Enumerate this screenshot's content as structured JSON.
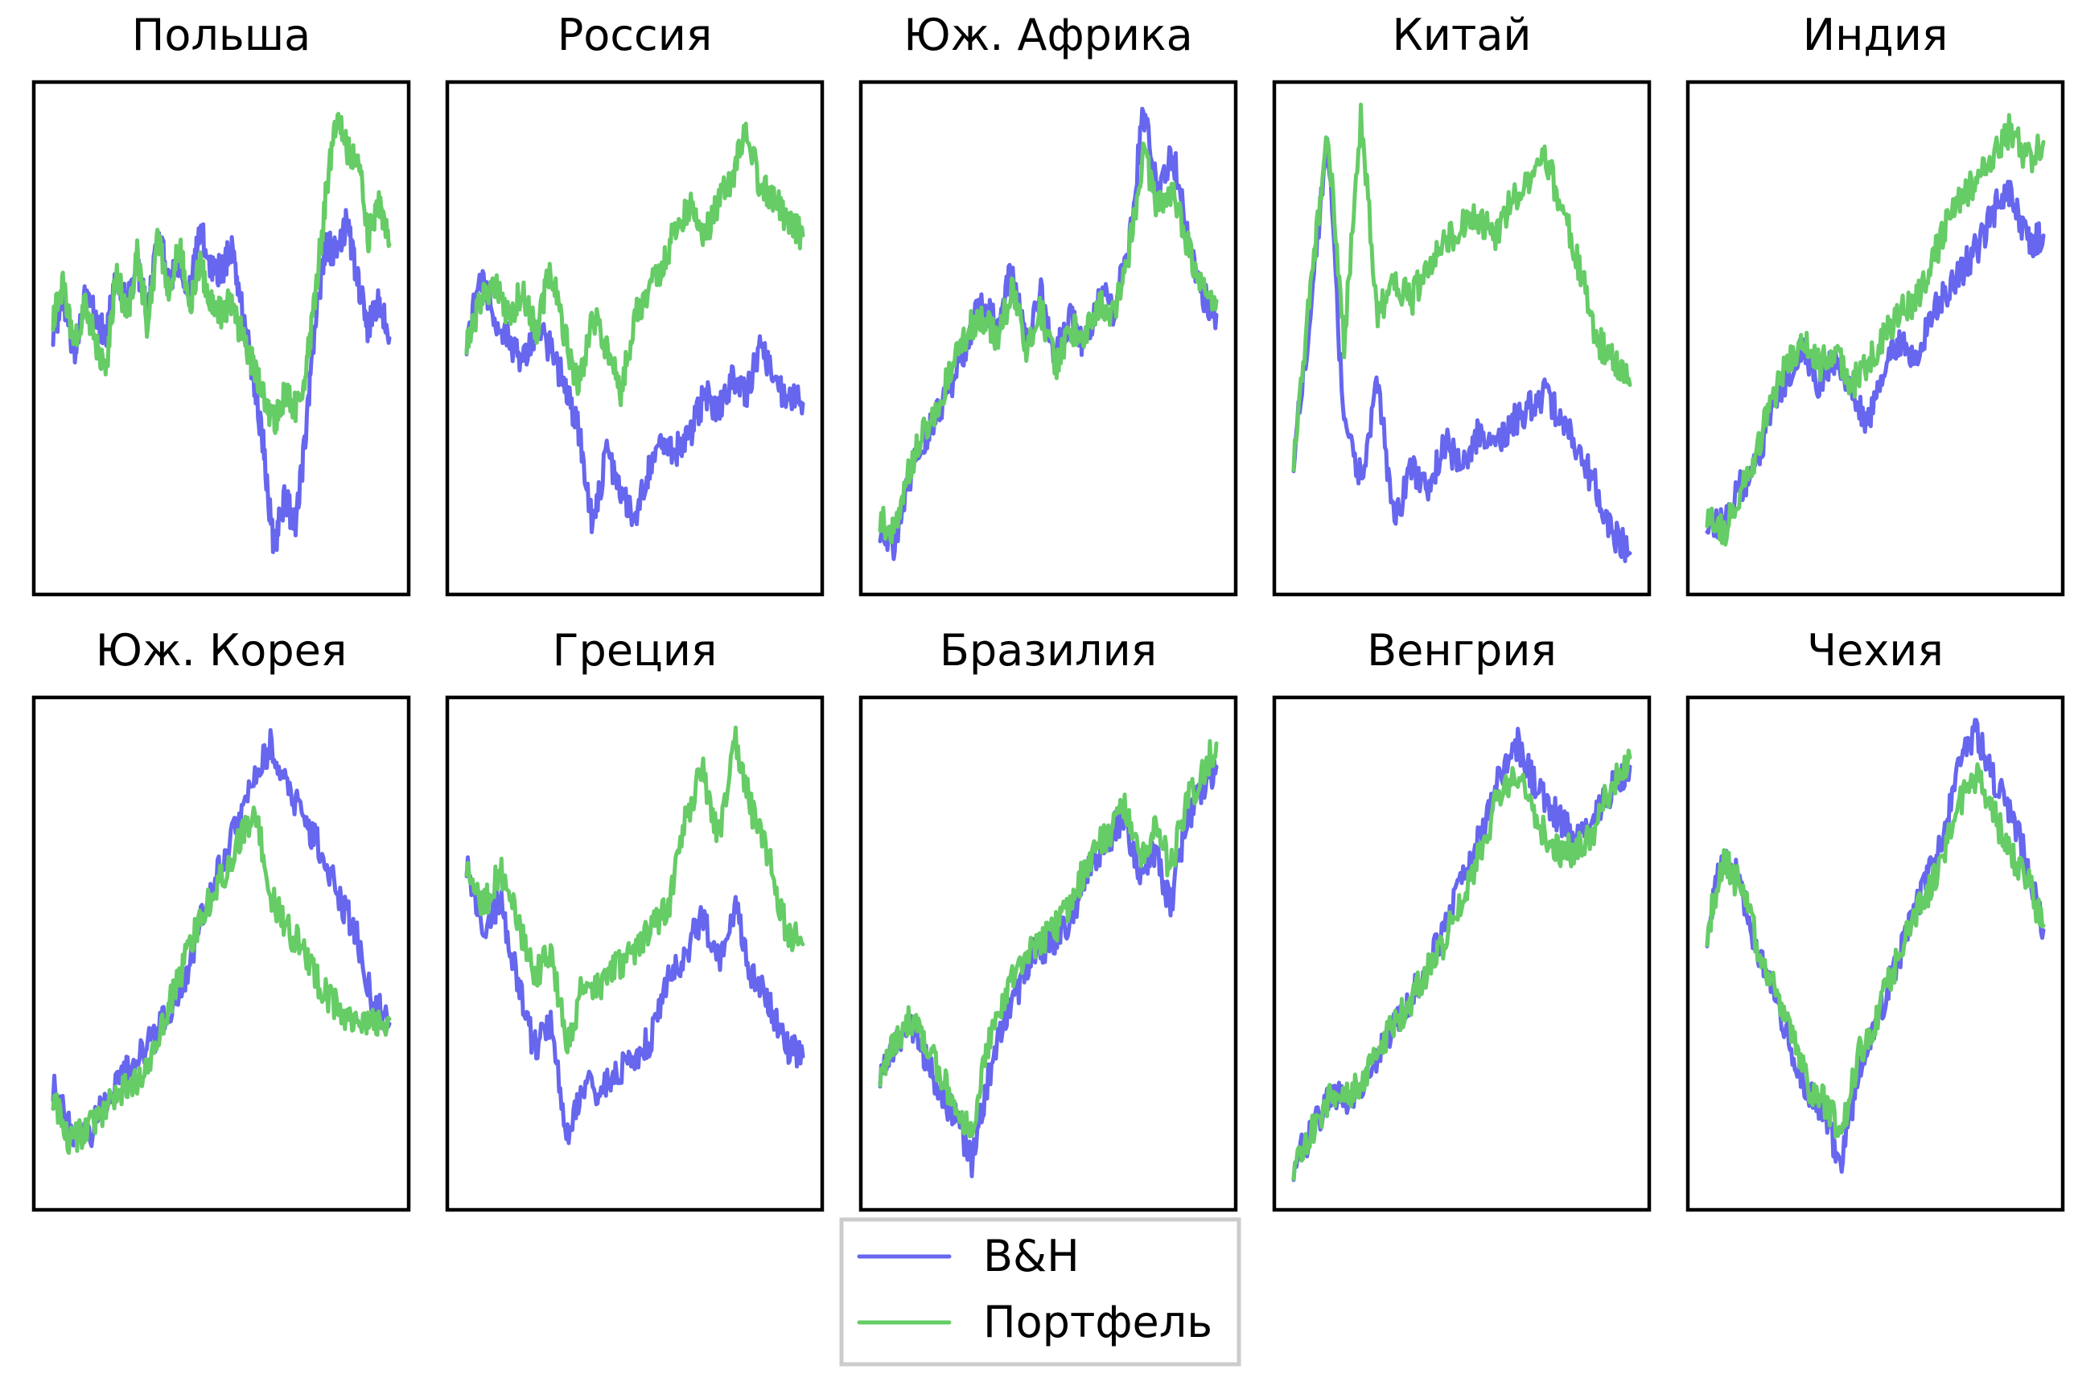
{
  "chart_data": {
    "type": "line",
    "grid": false,
    "axes_ticks": false,
    "legend": {
      "placement": "bottom-center",
      "entries": [
        {
          "label": "B&H",
          "color": "#6666ee"
        },
        {
          "label": "Портфель",
          "color": "#66cc66"
        }
      ]
    },
    "series_colors": {
      "bh": "#6666ee",
      "portfolio": "#66cc66"
    },
    "panels": [
      {
        "title": "Польша",
        "bh": [
          0.52,
          0.58,
          0.46,
          0.6,
          0.55,
          0.5,
          0.63,
          0.57,
          0.66,
          0.54,
          0.74,
          0.62,
          0.67,
          0.6,
          0.73,
          0.66,
          0.64,
          0.7,
          0.56,
          0.43,
          0.27,
          0.05,
          0.16,
          0.1,
          0.28,
          0.55,
          0.7,
          0.68,
          0.75,
          0.62,
          0.52,
          0.58,
          0.5
        ],
        "portfolio": [
          0.55,
          0.62,
          0.47,
          0.58,
          0.5,
          0.42,
          0.65,
          0.54,
          0.68,
          0.52,
          0.72,
          0.6,
          0.7,
          0.56,
          0.66,
          0.58,
          0.55,
          0.58,
          0.5,
          0.45,
          0.38,
          0.32,
          0.38,
          0.35,
          0.42,
          0.6,
          0.82,
          0.98,
          0.9,
          0.88,
          0.72,
          0.78,
          0.7
        ]
      },
      {
        "title": "Россия",
        "bh": [
          0.5,
          0.62,
          0.55,
          0.5,
          0.45,
          0.52,
          0.48,
          0.4,
          0.3,
          0.1,
          0.25,
          0.18,
          0.12,
          0.22,
          0.28,
          0.26,
          0.3,
          0.38,
          0.34,
          0.42,
          0.38,
          0.5,
          0.4,
          0.38,
          0.36
        ],
        "portfolio": [
          0.5,
          0.58,
          0.62,
          0.55,
          0.6,
          0.52,
          0.65,
          0.5,
          0.4,
          0.55,
          0.48,
          0.38,
          0.55,
          0.6,
          0.65,
          0.75,
          0.78,
          0.72,
          0.8,
          0.85,
          0.95,
          0.82,
          0.8,
          0.75,
          0.72
        ]
      },
      {
        "title": "Юж. Африка",
        "bh": [
          0.1,
          0.05,
          0.2,
          0.28,
          0.35,
          0.4,
          0.5,
          0.58,
          0.52,
          0.65,
          0.5,
          0.6,
          0.46,
          0.55,
          0.48,
          0.6,
          0.56,
          0.7,
          0.98,
          0.82,
          0.9,
          0.72,
          0.6,
          0.55
        ],
        "portfolio": [
          0.12,
          0.08,
          0.22,
          0.3,
          0.36,
          0.44,
          0.52,
          0.55,
          0.5,
          0.6,
          0.48,
          0.56,
          0.44,
          0.52,
          0.5,
          0.58,
          0.55,
          0.68,
          0.9,
          0.78,
          0.82,
          0.7,
          0.62,
          0.58
        ]
      },
      {
        "title": "Китай",
        "bh": [
          0.25,
          0.55,
          0.95,
          0.3,
          0.2,
          0.4,
          0.1,
          0.22,
          0.18,
          0.28,
          0.22,
          0.3,
          0.26,
          0.32,
          0.35,
          0.38,
          0.32,
          0.25,
          0.18,
          0.08,
          0.04
        ],
        "portfolio": [
          0.25,
          0.6,
          0.95,
          0.48,
          0.98,
          0.55,
          0.62,
          0.58,
          0.66,
          0.7,
          0.74,
          0.76,
          0.72,
          0.8,
          0.84,
          0.88,
          0.78,
          0.65,
          0.5,
          0.45,
          0.4
        ]
      },
      {
        "title": "Индия",
        "bh": [
          0.12,
          0.1,
          0.18,
          0.22,
          0.35,
          0.42,
          0.48,
          0.4,
          0.46,
          0.38,
          0.32,
          0.42,
          0.5,
          0.46,
          0.55,
          0.6,
          0.65,
          0.7,
          0.78,
          0.82,
          0.7,
          0.72
        ],
        "portfolio": [
          0.13,
          0.08,
          0.16,
          0.25,
          0.36,
          0.45,
          0.5,
          0.44,
          0.48,
          0.4,
          0.44,
          0.5,
          0.55,
          0.58,
          0.66,
          0.75,
          0.8,
          0.85,
          0.9,
          0.95,
          0.88,
          0.92
        ]
      },
      {
        "title": "Юж. Корея",
        "bh": [
          0.22,
          0.12,
          0.1,
          0.18,
          0.24,
          0.28,
          0.32,
          0.38,
          0.46,
          0.6,
          0.7,
          0.78,
          0.88,
          0.95,
          0.85,
          0.78,
          0.72,
          0.62,
          0.55,
          0.4,
          0.35
        ],
        "portfolio": [
          0.2,
          0.1,
          0.12,
          0.16,
          0.2,
          0.22,
          0.3,
          0.4,
          0.5,
          0.6,
          0.66,
          0.74,
          0.8,
          0.62,
          0.55,
          0.5,
          0.42,
          0.38,
          0.36,
          0.35,
          0.36
        ]
      },
      {
        "title": "Греция",
        "bh": [
          0.7,
          0.55,
          0.62,
          0.45,
          0.3,
          0.35,
          0.1,
          0.22,
          0.2,
          0.25,
          0.28,
          0.32,
          0.45,
          0.5,
          0.58,
          0.48,
          0.6,
          0.45,
          0.4,
          0.3,
          0.28
        ],
        "portfolio": [
          0.7,
          0.6,
          0.68,
          0.58,
          0.45,
          0.5,
          0.3,
          0.45,
          0.42,
          0.48,
          0.5,
          0.56,
          0.6,
          0.78,
          0.9,
          0.75,
          0.95,
          0.8,
          0.7,
          0.55,
          0.52
        ]
      },
      {
        "title": "Бразилия",
        "bh": [
          0.25,
          0.3,
          0.35,
          0.28,
          0.2,
          0.15,
          0.05,
          0.22,
          0.35,
          0.42,
          0.5,
          0.52,
          0.55,
          0.62,
          0.7,
          0.75,
          0.8,
          0.65,
          0.72,
          0.6,
          0.78,
          0.85,
          0.9
        ],
        "portfolio": [
          0.25,
          0.32,
          0.36,
          0.3,
          0.24,
          0.18,
          0.12,
          0.3,
          0.4,
          0.48,
          0.52,
          0.54,
          0.58,
          0.65,
          0.72,
          0.76,
          0.82,
          0.7,
          0.78,
          0.68,
          0.82,
          0.88,
          0.95
        ]
      },
      {
        "title": "Венгрия",
        "bh": [
          0.05,
          0.12,
          0.2,
          0.18,
          0.24,
          0.32,
          0.38,
          0.46,
          0.55,
          0.65,
          0.75,
          0.88,
          0.95,
          0.85,
          0.8,
          0.75,
          0.78,
          0.85,
          0.9
        ],
        "portfolio": [
          0.05,
          0.12,
          0.2,
          0.19,
          0.25,
          0.33,
          0.38,
          0.45,
          0.52,
          0.62,
          0.72,
          0.84,
          0.88,
          0.78,
          0.72,
          0.72,
          0.76,
          0.86,
          0.92
        ]
      },
      {
        "title": "Чехия",
        "bh": [
          0.55,
          0.72,
          0.65,
          0.5,
          0.4,
          0.3,
          0.2,
          0.15,
          0.05,
          0.25,
          0.35,
          0.45,
          0.55,
          0.65,
          0.75,
          0.9,
          0.98,
          0.88,
          0.8,
          0.7,
          0.55
        ],
        "portfolio": [
          0.55,
          0.7,
          0.64,
          0.52,
          0.42,
          0.32,
          0.22,
          0.18,
          0.12,
          0.28,
          0.36,
          0.46,
          0.55,
          0.62,
          0.7,
          0.82,
          0.88,
          0.8,
          0.72,
          0.66,
          0.56
        ]
      }
    ]
  }
}
